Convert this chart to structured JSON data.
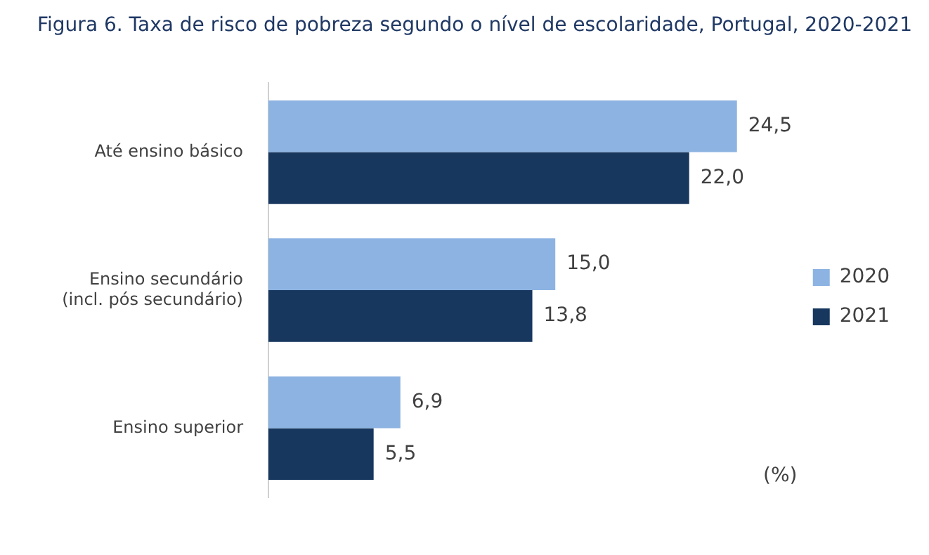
{
  "chart_data": {
    "type": "bar",
    "orientation": "horizontal",
    "title": "Figura 6. Taxa de risco de pobreza segundo o nível de escolaridade, Portugal, 2020-2021",
    "categories": [
      "Até ensino básico",
      "Ensino secundário\n(incl. pós secundário)",
      "Ensino superior"
    ],
    "series": [
      {
        "name": "2020",
        "color": "#8db3e2",
        "values": [
          24.5,
          15.0,
          6.9
        ],
        "value_labels": [
          "24,5",
          "15,0",
          "6,9"
        ]
      },
      {
        "name": "2021",
        "color": "#17375e",
        "values": [
          22.0,
          13.8,
          5.5
        ],
        "value_labels": [
          "22,0",
          "13,8",
          "5,5"
        ]
      }
    ],
    "legend": "right",
    "annotations": [
      "(%)"
    ]
  }
}
